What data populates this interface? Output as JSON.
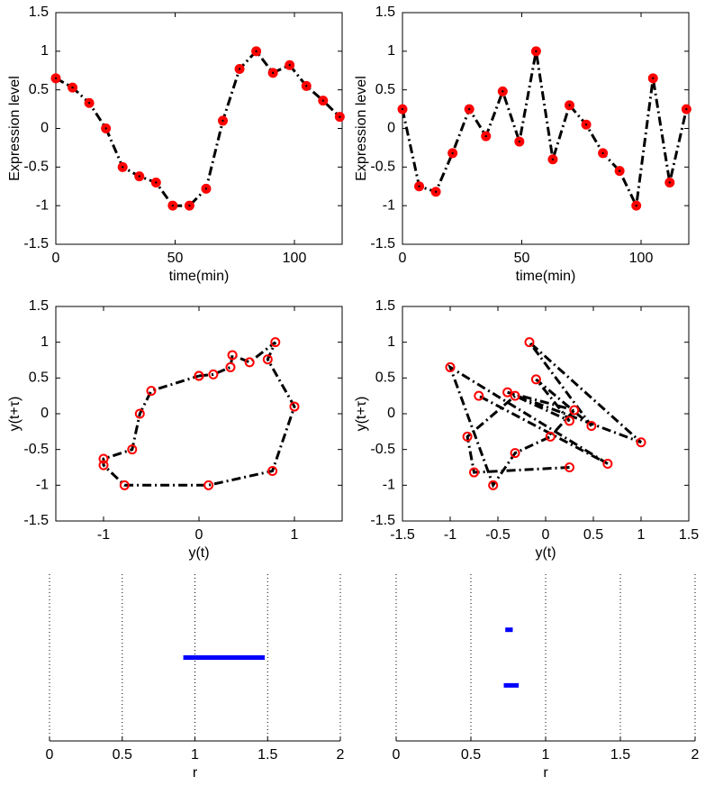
{
  "chart_data": [
    {
      "type": "line",
      "xlabel": "time(min)",
      "ylabel": "Expression level",
      "x": [
        0,
        7,
        14,
        21,
        28,
        35,
        42,
        49,
        56,
        63,
        70,
        77,
        84,
        91,
        98,
        105,
        112,
        119
      ],
      "values": [
        0.65,
        0.53,
        0.33,
        0,
        -0.5,
        -0.62,
        -0.7,
        -1,
        -1,
        -0.78,
        0.1,
        0.77,
        1,
        0.72,
        0.82,
        0.55,
        0.36,
        0.15
      ],
      "color": "#000000",
      "marker_color": "#ff0000",
      "marker_fill": true,
      "xlim": [
        0,
        120
      ],
      "xticks": [
        0,
        50,
        100
      ],
      "ylim": [
        -1.5,
        1.5
      ],
      "yticks": [
        -1.5,
        -1,
        -0.5,
        0,
        0.5,
        1,
        1.5
      ]
    },
    {
      "type": "line",
      "xlabel": "time(min)",
      "ylabel": "Expression level",
      "x": [
        0,
        7,
        14,
        21,
        28,
        35,
        42,
        49,
        56,
        63,
        70,
        77,
        84,
        91,
        98,
        105,
        112,
        119
      ],
      "values": [
        0.25,
        -0.75,
        -0.82,
        -0.32,
        0.25,
        -0.1,
        0.48,
        -0.17,
        1,
        -0.4,
        0.3,
        0.05,
        -0.32,
        -0.55,
        -1,
        0.65,
        -0.7,
        0.25
      ],
      "color": "#000000",
      "marker_color": "#ff0000",
      "marker_fill": true,
      "xlim": [
        0,
        120
      ],
      "xticks": [
        0,
        50,
        100
      ],
      "ylim": [
        -1.5,
        1.5
      ],
      "yticks": [
        -1.5,
        -1,
        -0.5,
        0,
        0.5,
        1,
        1.5
      ]
    },
    {
      "type": "scatter",
      "xlabel": "y(t)",
      "ylabel": "y(t+τ)",
      "x": [
        0,
        0.15,
        0.33,
        0.35,
        0.53,
        0.8,
        0.72,
        1,
        0.77,
        0.1,
        -0.78,
        -1,
        -1,
        -0.7,
        -0.62,
        -0.5,
        0
      ],
      "values": [
        0.53,
        0.55,
        0.65,
        0.82,
        0.72,
        1,
        0.76,
        0.1,
        -0.8,
        -1,
        -1,
        -0.72,
        -0.63,
        -0.5,
        0,
        0.32,
        0.53
      ],
      "color": "#000000",
      "marker_color": "#ff0000",
      "marker_fill": false,
      "xlim": [
        -1.5,
        1.5
      ],
      "xticks": [
        -1,
        0,
        1
      ],
      "ylim": [
        -1.5,
        1.5
      ],
      "yticks": [
        -1.5,
        -1,
        -0.5,
        0,
        0.5,
        1,
        1.5
      ]
    },
    {
      "type": "scatter",
      "xlabel": "y(t)",
      "ylabel": "y(t+τ)",
      "x": [
        0.25,
        -0.75,
        -0.82,
        -0.32,
        0.25,
        -0.1,
        0.48,
        -0.17,
        1,
        -0.4,
        0.3,
        0.05,
        -0.32,
        -0.55,
        -1,
        0.65,
        -0.7
      ],
      "values": [
        -0.75,
        -0.82,
        -0.32,
        0.25,
        -0.1,
        0.48,
        -0.17,
        1,
        -0.4,
        0.3,
        0.05,
        -0.32,
        -0.55,
        -1,
        0.65,
        -0.7,
        0.25
      ],
      "color": "#000000",
      "marker_color": "#ff0000",
      "marker_fill": false,
      "xlim": [
        -1.5,
        1.5
      ],
      "xticks": [
        -1.5,
        -1,
        -0.5,
        0,
        0.5,
        1,
        1.5
      ],
      "ylim": [
        -1.5,
        1.5
      ],
      "yticks": [
        -1.5,
        -1,
        -0.5,
        0,
        0.5,
        1,
        1.5
      ]
    },
    {
      "type": "interval",
      "xlabel": "r",
      "color": "#0000ff",
      "grid": true,
      "segments": [
        {
          "start": 0.92,
          "end": 1.48
        }
      ],
      "xlim": [
        0,
        2
      ],
      "xticks": [
        0,
        0.5,
        1,
        1.5,
        2
      ]
    },
    {
      "type": "interval",
      "xlabel": "r",
      "color": "#0000ff",
      "grid": true,
      "segments": [
        {
          "start": 0.73,
          "end": 0.78
        },
        {
          "start": 0.72,
          "end": 0.82
        }
      ],
      "xlim": [
        0,
        2
      ],
      "xticks": [
        0,
        0.5,
        1,
        1.5,
        2
      ]
    }
  ]
}
